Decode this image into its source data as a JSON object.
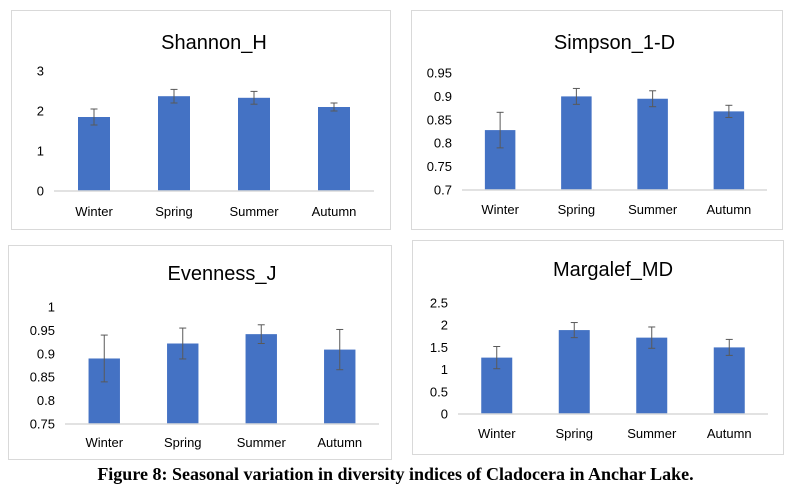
{
  "colors": {
    "bar": "#4472c4",
    "axis": "#d9d9d9",
    "text": "#000000",
    "error_bar": "#595959"
  },
  "caption": "Figure 8: Seasonal variation in diversity indices of Cladocera in Anchar Lake.",
  "chart_data": [
    {
      "type": "bar",
      "title": "Shannon_H",
      "categories": [
        "Winter",
        "Spring",
        "Summer",
        "Autumn"
      ],
      "values": [
        1.85,
        2.37,
        2.33,
        2.1
      ],
      "errors": [
        0.2,
        0.17,
        0.16,
        0.1
      ],
      "ylim": [
        0,
        3
      ],
      "yticks": [
        "0",
        "1",
        "2",
        "3"
      ],
      "ytick_values": [
        0,
        1,
        2,
        3
      ],
      "grid": false
    },
    {
      "type": "bar",
      "title": "Simpson_1-D",
      "categories": [
        "Winter",
        "Spring",
        "Summer",
        "Autumn"
      ],
      "values": [
        0.828,
        0.9,
        0.895,
        0.868
      ],
      "errors": [
        0.038,
        0.017,
        0.017,
        0.013
      ],
      "ylim": [
        0.7,
        0.95
      ],
      "yticks": [
        "0.7",
        "0.75",
        "0.8",
        "0.85",
        "0.9",
        "0.95"
      ],
      "ytick_values": [
        0.7,
        0.75,
        0.8,
        0.85,
        0.9,
        0.95
      ],
      "grid": false
    },
    {
      "type": "bar",
      "title": "Evenness_J",
      "categories": [
        "Winter",
        "Spring",
        "Summer",
        "Autumn"
      ],
      "values": [
        0.89,
        0.922,
        0.942,
        0.909
      ],
      "errors": [
        0.05,
        0.033,
        0.02,
        0.043
      ],
      "ylim": [
        0.75,
        1
      ],
      "yticks": [
        "0.75",
        "0.8",
        "0.85",
        "0.9",
        "0.95",
        "1"
      ],
      "ytick_values": [
        0.75,
        0.8,
        0.85,
        0.9,
        0.95,
        1
      ],
      "grid": false
    },
    {
      "type": "bar",
      "title": "Margalef_MD",
      "categories": [
        "Winter",
        "Spring",
        "Summer",
        "Autumn"
      ],
      "values": [
        1.27,
        1.89,
        1.72,
        1.5
      ],
      "errors": [
        0.25,
        0.17,
        0.24,
        0.18
      ],
      "ylim": [
        0,
        2.5
      ],
      "yticks": [
        "0",
        "0.5",
        "1",
        "1.5",
        "2",
        "2.5"
      ],
      "ytick_values": [
        0,
        0.5,
        1,
        1.5,
        2,
        2.5
      ],
      "grid": false
    }
  ]
}
